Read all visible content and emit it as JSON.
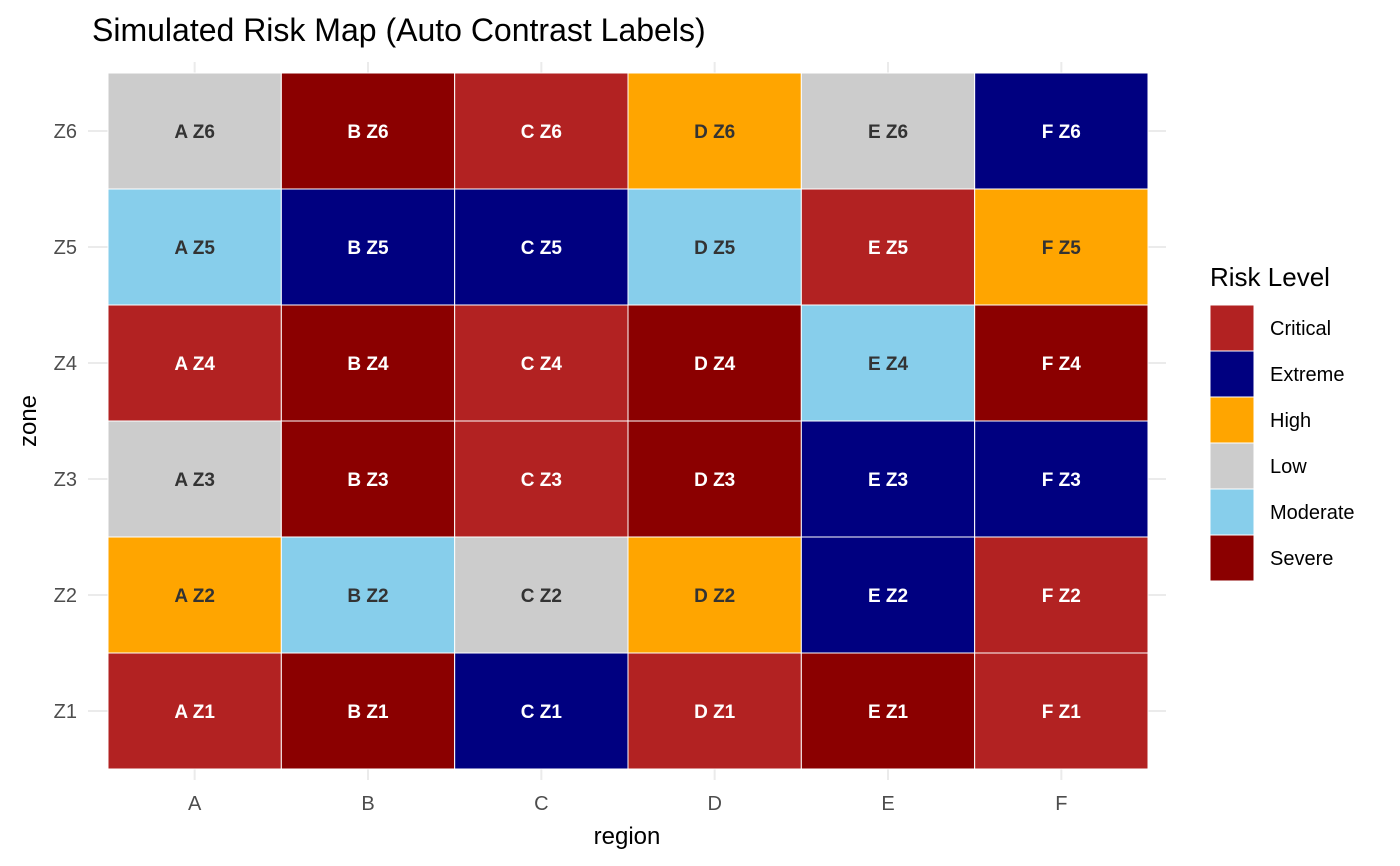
{
  "chart_data": {
    "type": "heatmap",
    "title": "Simulated Risk Map (Auto Contrast Labels)",
    "xlabel": "region",
    "ylabel": "zone",
    "x_categories": [
      "A",
      "B",
      "C",
      "D",
      "E",
      "F"
    ],
    "y_categories": [
      "Z1",
      "Z2",
      "Z3",
      "Z4",
      "Z5",
      "Z6"
    ],
    "grid": true,
    "legend": {
      "title": "Risk Level",
      "placement": "right",
      "levels": [
        {
          "name": "Critical",
          "color": "#B22222"
        },
        {
          "name": "Extreme",
          "color": "#000080"
        },
        {
          "name": "High",
          "color": "#FFA500"
        },
        {
          "name": "Low",
          "color": "#CCCCCC"
        },
        {
          "name": "Moderate",
          "color": "#87CEEB"
        },
        {
          "name": "Severe",
          "color": "#8B0000"
        }
      ]
    },
    "label_colors": {
      "dark": "#333333",
      "light": "#FFFFFF"
    },
    "cells": [
      {
        "x": "A",
        "y": "Z6",
        "level": "Low",
        "label": "A Z6"
      },
      {
        "x": "B",
        "y": "Z6",
        "level": "Severe",
        "label": "B Z6"
      },
      {
        "x": "C",
        "y": "Z6",
        "level": "Critical",
        "label": "C Z6"
      },
      {
        "x": "D",
        "y": "Z6",
        "level": "High",
        "label": "D Z6"
      },
      {
        "x": "E",
        "y": "Z6",
        "level": "Low",
        "label": "E Z6"
      },
      {
        "x": "F",
        "y": "Z6",
        "level": "Extreme",
        "label": "F Z6"
      },
      {
        "x": "A",
        "y": "Z5",
        "level": "Moderate",
        "label": "A Z5"
      },
      {
        "x": "B",
        "y": "Z5",
        "level": "Extreme",
        "label": "B Z5"
      },
      {
        "x": "C",
        "y": "Z5",
        "level": "Extreme",
        "label": "C Z5"
      },
      {
        "x": "D",
        "y": "Z5",
        "level": "Moderate",
        "label": "D Z5"
      },
      {
        "x": "E",
        "y": "Z5",
        "level": "Critical",
        "label": "E Z5"
      },
      {
        "x": "F",
        "y": "Z5",
        "level": "High",
        "label": "F Z5"
      },
      {
        "x": "A",
        "y": "Z4",
        "level": "Critical",
        "label": "A Z4"
      },
      {
        "x": "B",
        "y": "Z4",
        "level": "Severe",
        "label": "B Z4"
      },
      {
        "x": "C",
        "y": "Z4",
        "level": "Critical",
        "label": "C Z4"
      },
      {
        "x": "D",
        "y": "Z4",
        "level": "Severe",
        "label": "D Z4"
      },
      {
        "x": "E",
        "y": "Z4",
        "level": "Moderate",
        "label": "E Z4"
      },
      {
        "x": "F",
        "y": "Z4",
        "level": "Severe",
        "label": "F Z4"
      },
      {
        "x": "A",
        "y": "Z3",
        "level": "Low",
        "label": "A Z3"
      },
      {
        "x": "B",
        "y": "Z3",
        "level": "Severe",
        "label": "B Z3"
      },
      {
        "x": "C",
        "y": "Z3",
        "level": "Critical",
        "label": "C Z3"
      },
      {
        "x": "D",
        "y": "Z3",
        "level": "Severe",
        "label": "D Z3"
      },
      {
        "x": "E",
        "y": "Z3",
        "level": "Extreme",
        "label": "E Z3"
      },
      {
        "x": "F",
        "y": "Z3",
        "level": "Extreme",
        "label": "F Z3"
      },
      {
        "x": "A",
        "y": "Z2",
        "level": "High",
        "label": "A Z2"
      },
      {
        "x": "B",
        "y": "Z2",
        "level": "Moderate",
        "label": "B Z2"
      },
      {
        "x": "C",
        "y": "Z2",
        "level": "Low",
        "label": "C Z2"
      },
      {
        "x": "D",
        "y": "Z2",
        "level": "High",
        "label": "D Z2"
      },
      {
        "x": "E",
        "y": "Z2",
        "level": "Extreme",
        "label": "E Z2"
      },
      {
        "x": "F",
        "y": "Z2",
        "level": "Critical",
        "label": "F Z2"
      },
      {
        "x": "A",
        "y": "Z1",
        "level": "Critical",
        "label": "A Z1"
      },
      {
        "x": "B",
        "y": "Z1",
        "level": "Severe",
        "label": "B Z1"
      },
      {
        "x": "C",
        "y": "Z1",
        "level": "Extreme",
        "label": "C Z1"
      },
      {
        "x": "D",
        "y": "Z1",
        "level": "Critical",
        "label": "D Z1"
      },
      {
        "x": "E",
        "y": "Z1",
        "level": "Severe",
        "label": "E Z1"
      },
      {
        "x": "F",
        "y": "Z1",
        "level": "Critical",
        "label": "F Z1"
      }
    ]
  }
}
